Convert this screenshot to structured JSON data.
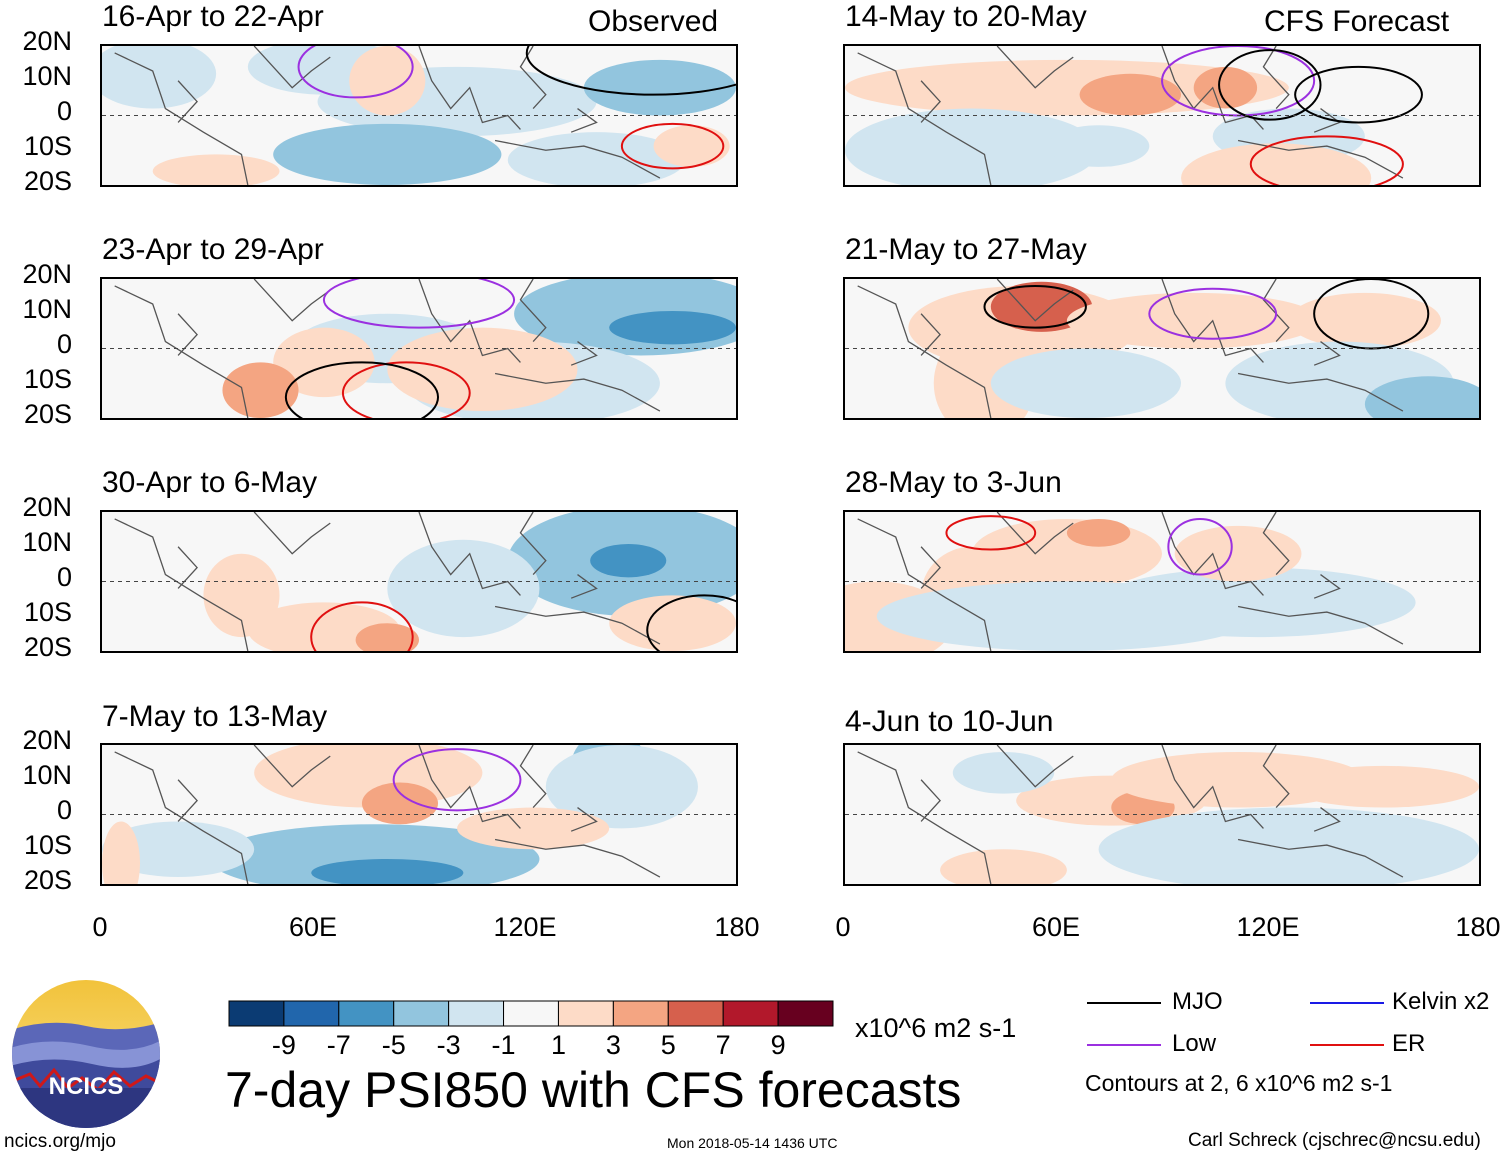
{
  "chart_data": {
    "type": "heatmap",
    "title": "7-day PSI850 with CFS forecasts",
    "units": "x10^6 m2 s-1",
    "observed_label": "Observed",
    "forecast_label": "CFS Forecast",
    "y_ticks": [
      "20N",
      "10N",
      "0",
      "10S",
      "20S"
    ],
    "x_ticks": [
      "0",
      "60E",
      "120E",
      "180"
    ],
    "xlim": [
      0,
      180
    ],
    "ylim": [
      -20,
      20
    ],
    "colorbar_labels": [
      "-9",
      "-7",
      "-5",
      "-3",
      "-1",
      "1",
      "3",
      "5",
      "7",
      "9"
    ],
    "colorbar_colors": [
      "#0b3b73",
      "#2166ac",
      "#4393c3",
      "#92c5de",
      "#d1e5f0",
      "#f7f7f7",
      "#fddbc7",
      "#f4a582",
      "#d6604d",
      "#b2182b",
      "#67001f"
    ],
    "panels": [
      {
        "title": "16-Apr to 22-Apr",
        "kind": "observed"
      },
      {
        "title": "23-Apr to 29-Apr",
        "kind": "observed"
      },
      {
        "title": "30-Apr to 6-May",
        "kind": "observed"
      },
      {
        "title": "7-May to 13-May",
        "kind": "observed"
      },
      {
        "title": "14-May to 20-May",
        "kind": "forecast"
      },
      {
        "title": "21-May to 27-May",
        "kind": "forecast"
      },
      {
        "title": "28-May to 3-Jun",
        "kind": "forecast"
      },
      {
        "title": "4-Jun to 10-Jun",
        "kind": "forecast"
      }
    ],
    "legend": [
      {
        "label": "MJO",
        "color": "#000000"
      },
      {
        "label": "Kelvin x2",
        "color": "#1a1ae6"
      },
      {
        "label": "Low",
        "color": "#9b30e0"
      },
      {
        "label": "ER",
        "color": "#e01010"
      }
    ],
    "contour_note": "Contours at 2, 6 x10^6 m2 s-1"
  },
  "footer": {
    "logo_text": "NCICS",
    "url": "ncics.org/mjo",
    "timestamp": "Mon 2018-05-14 1436 UTC",
    "credit": "Carl Schreck (cjschrec@ncsu.edu)"
  }
}
